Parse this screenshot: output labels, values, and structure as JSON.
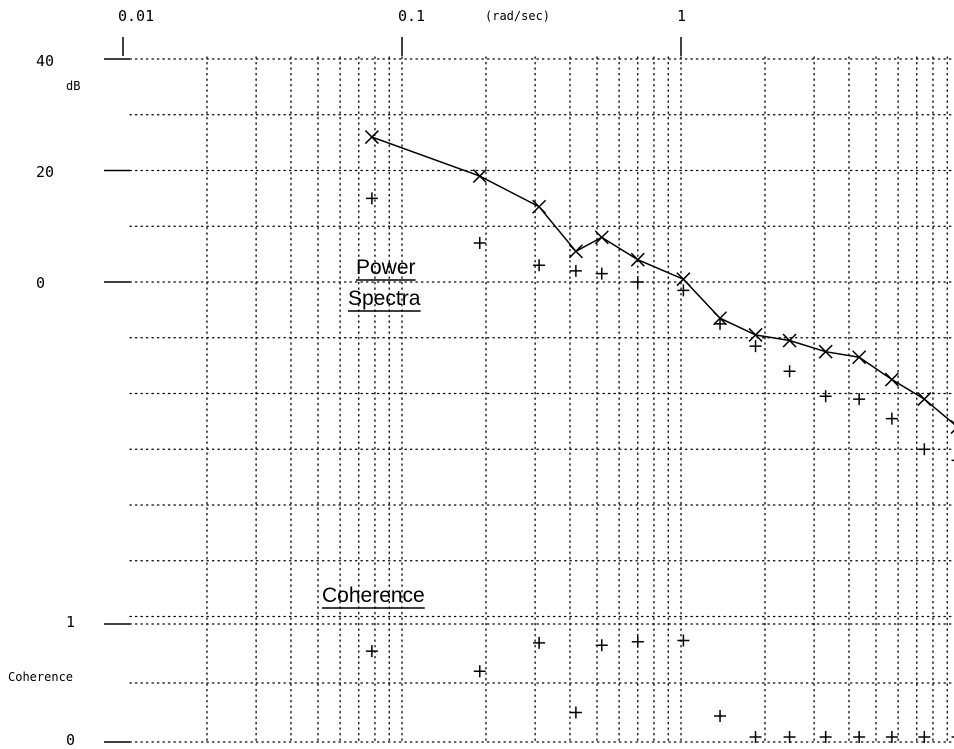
{
  "chart_data": {
    "type": "scatter",
    "x_scale": "log",
    "x_unit": "(rad/sec)",
    "x_ticks": [
      "0.01",
      "0.1",
      "1"
    ],
    "grid": true,
    "power_panel": {
      "y_unit": "dB",
      "y_ticks": [
        {
          "value": 40,
          "label": "40"
        },
        {
          "value": 20,
          "label": "20"
        },
        {
          "value": 0,
          "label": "0"
        }
      ],
      "ylim": [
        -90,
        40
      ],
      "annotation": [
        "Power",
        "Spectra"
      ],
      "series": [
        {
          "marker": "x",
          "connected": true,
          "points": [
            [
              0.078,
              26
            ],
            [
              0.19,
              19
            ],
            [
              0.31,
              13.5
            ],
            [
              0.42,
              5.5
            ],
            [
              0.52,
              8
            ],
            [
              0.7,
              4
            ],
            [
              1.02,
              0.5
            ],
            [
              1.38,
              -6.5
            ],
            [
              1.85,
              -9.5
            ],
            [
              2.45,
              -10.5
            ],
            [
              3.3,
              -12.5
            ],
            [
              4.35,
              -13.5
            ],
            [
              5.7,
              -17.5
            ],
            [
              7.45,
              -21
            ],
            [
              9.8,
              -26
            ]
          ]
        },
        {
          "marker": "+",
          "connected": false,
          "points": [
            [
              0.078,
              15
            ],
            [
              0.19,
              7
            ],
            [
              0.31,
              3
            ],
            [
              0.42,
              2
            ],
            [
              0.52,
              1.5
            ],
            [
              0.7,
              0
            ],
            [
              1.02,
              -1.5
            ],
            [
              1.38,
              -7.5
            ],
            [
              1.85,
              -11.5
            ],
            [
              2.45,
              -16
            ],
            [
              3.3,
              -20.5
            ],
            [
              4.35,
              -21
            ],
            [
              5.7,
              -24.5
            ],
            [
              7.45,
              -30
            ],
            [
              9.8,
              -32
            ]
          ]
        }
      ]
    },
    "coherence_panel": {
      "y_unit": "Coherence",
      "y_ticks": [
        {
          "value": 1,
          "label": "1"
        },
        {
          "value": 0,
          "label": "0"
        }
      ],
      "ylim": [
        0,
        1
      ],
      "annotation": "Coherence",
      "series": [
        {
          "marker": "+",
          "connected": false,
          "points": [
            [
              0.078,
              0.77
            ],
            [
              0.19,
              0.6
            ],
            [
              0.31,
              0.84
            ],
            [
              0.42,
              0.25
            ],
            [
              0.52,
              0.82
            ],
            [
              0.7,
              0.85
            ],
            [
              1.02,
              0.86
            ],
            [
              1.38,
              0.22
            ],
            [
              1.85,
              0.04
            ],
            [
              2.45,
              0.0
            ],
            [
              3.3,
              0.0
            ],
            [
              4.35,
              0.0
            ],
            [
              5.7,
              0.0
            ],
            [
              7.45,
              0.0
            ],
            [
              9.8,
              0.0
            ]
          ]
        }
      ]
    }
  }
}
